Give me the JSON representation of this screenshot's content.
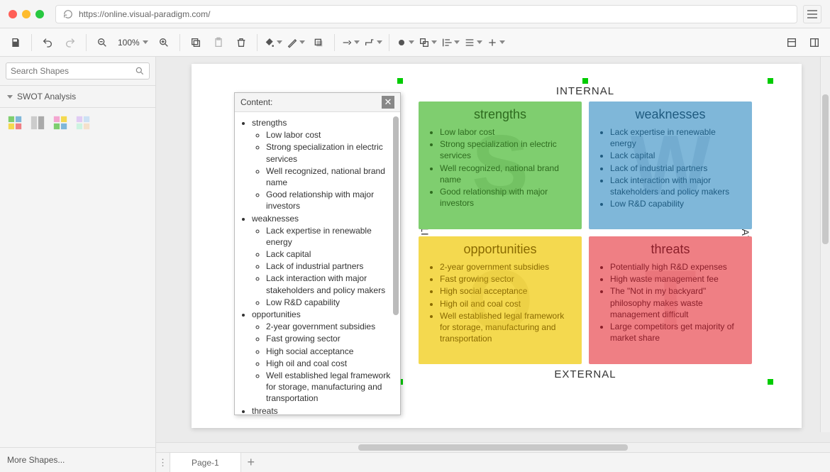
{
  "browser": {
    "url": "https://online.visual-paradigm.com/",
    "traffic": {
      "close": "#ff5f57",
      "min": "#febc2e",
      "max": "#28c840"
    }
  },
  "toolbar": {
    "zoom": "100%"
  },
  "sidebar": {
    "search_placeholder": "Search Shapes",
    "panel_title": "SWOT Analysis",
    "more": "More Shapes..."
  },
  "tabs": {
    "page1": "Page-1"
  },
  "content_panel": {
    "title": "Content:",
    "tree": [
      {
        "label": "strengths",
        "items": [
          "Low labor cost",
          "Strong specialization in electric services",
          "Well recognized, national brand name",
          "Good relationship with major investors"
        ]
      },
      {
        "label": "weaknesses",
        "items": [
          "Lack expertise in renewable energy",
          "Lack capital",
          "Lack of industrial partners",
          "Lack interaction with major stakeholders and policy makers",
          "Low R&D capability"
        ]
      },
      {
        "label": "opportunities",
        "items": [
          "2-year government subsidies",
          "Fast growing sector",
          "High social acceptance",
          "High oil and coal cost",
          "Well established legal framework for storage, manufacturing and transportation"
        ]
      },
      {
        "label": "threats",
        "items": []
      }
    ]
  },
  "swot": {
    "axis_top": "INTERNAL",
    "axis_bottom": "EXTERNAL",
    "axis_left": "POSITIVE",
    "axis_right": "NEGATIVE",
    "quads": {
      "strengths": {
        "title": "strengths",
        "letter": "S",
        "bg": "#7fce6f",
        "title_color": "#2e6b1f",
        "text_color": "#2e6b1f",
        "letter_color": "#4a9a3a",
        "items": [
          "Low labor cost",
          "Strong specialization in electric services",
          "Well recognized, national brand name",
          "Good relationship with major investors"
        ]
      },
      "weaknesses": {
        "title": "weaknesses",
        "letter": "W",
        "bg": "#7fb7d9",
        "title_color": "#1f5b80",
        "text_color": "#1f5b80",
        "letter_color": "#4a8ab5",
        "items": [
          "Lack expertise in renewable energy",
          "Lack capital",
          "Lack of industrial partners",
          "Lack interaction with major stakeholders and policy makers",
          "Low R&D capability"
        ]
      },
      "opportunities": {
        "title": "opportunities",
        "letter": "O",
        "bg": "#f4d94f",
        "title_color": "#8a6a00",
        "text_color": "#8a6a00",
        "letter_color": "#d9b92a",
        "items": [
          "2-year government subsidies",
          "Fast growing sector",
          "High social acceptance",
          "High oil and coal cost",
          "Well established legal framework for storage, manufacturing and transportation"
        ]
      },
      "threats": {
        "title": "threats",
        "letter": "T",
        "bg": "#ef7f84",
        "title_color": "#8a1f2a",
        "text_color": "#8a1f2a",
        "letter_color": "#d9565e",
        "items": [
          "Potentially high R&D expenses",
          "High waste management fee",
          "The \"Not in my backyard\" philosophy makes waste management difficult",
          "Large competitors get majority of market share"
        ]
      }
    }
  }
}
